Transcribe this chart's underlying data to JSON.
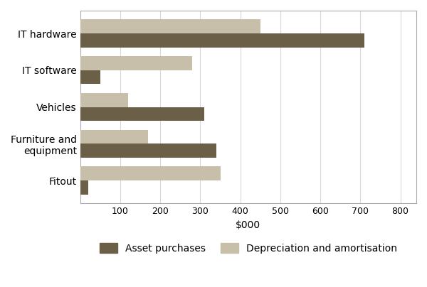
{
  "categories": [
    "IT hardware",
    "IT software",
    "Vehicles",
    "Furniture and\nequipment",
    "Fitout"
  ],
  "asset_purchases": [
    710,
    50,
    310,
    340,
    20
  ],
  "depreciation": [
    450,
    280,
    120,
    170,
    350
  ],
  "bar_color_dark": "#6b6047",
  "bar_color_light": "#c8bfaa",
  "xlabel": "$000",
  "xlim": [
    0,
    840
  ],
  "xticks": [
    100,
    200,
    300,
    400,
    500,
    600,
    700,
    800
  ],
  "background_color": "#ffffff",
  "border_color": "#aaaaaa",
  "grid_color": "#d8d8d8",
  "legend_label_dark": "Asset purchases",
  "legend_label_light": "Depreciation and amortisation",
  "bar_width": 0.38,
  "label_fontsize": 10,
  "tick_fontsize": 9,
  "legend_fontsize": 10
}
